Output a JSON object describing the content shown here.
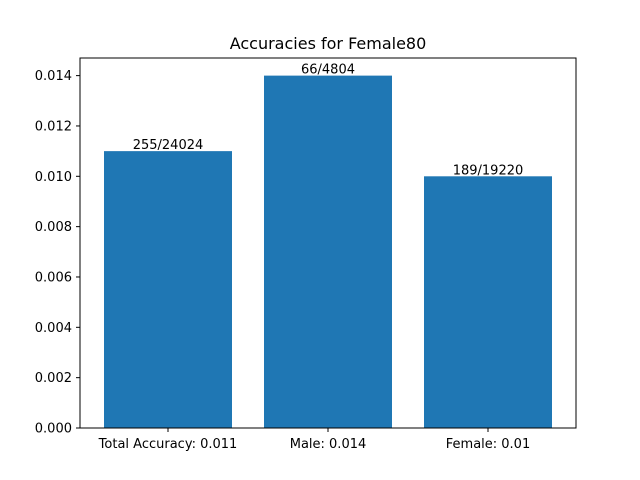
{
  "chart_data": {
    "type": "bar",
    "title": "Accuracies for Female80",
    "xlabel": "",
    "ylabel": "",
    "categories": [
      "Total Accuracy: 0.011",
      "Male: 0.014",
      "Female: 0.01"
    ],
    "values": [
      0.011,
      0.014,
      0.01
    ],
    "bar_labels": [
      "255/24024",
      "66/4804",
      "189/19220"
    ],
    "y_ticks": [
      "0.000",
      "0.002",
      "0.004",
      "0.006",
      "0.008",
      "0.010",
      "0.012",
      "0.014"
    ],
    "ylim": [
      0,
      0.0147
    ],
    "bar_color": "#1f77b4",
    "grid": false,
    "legend": "none"
  }
}
